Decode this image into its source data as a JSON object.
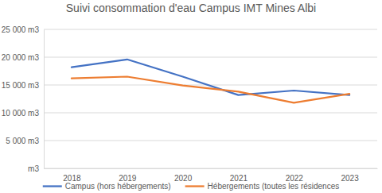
{
  "chart_data": {
    "type": "line",
    "title": "Suivi consommation d'eau Campus IMT Mines Albi",
    "categories": [
      "2018",
      "2019",
      "2020",
      "2021",
      "2022",
      "2023"
    ],
    "series": [
      {
        "name": "Campus (hors hébergements)",
        "color": "#4472c4",
        "values": [
          18200,
          19600,
          16500,
          13200,
          14000,
          13200
        ]
      },
      {
        "name": "Hébergements (toutes les résidences",
        "color": "#ed7d31",
        "values": [
          16200,
          16500,
          14900,
          13800,
          11800,
          13400
        ]
      }
    ],
    "ylim": [
      0,
      25000
    ],
    "yticks": [
      {
        "value": 0,
        "label": "m3"
      },
      {
        "value": 5000,
        "label": "5 000 m3"
      },
      {
        "value": 10000,
        "label": "10 000 m3"
      },
      {
        "value": 15000,
        "label": "15 000 m3"
      },
      {
        "value": 20000,
        "label": "20 000 m3"
      },
      {
        "value": 25000,
        "label": "25 000 m3"
      }
    ],
    "grid": true,
    "legend": "bottom"
  }
}
